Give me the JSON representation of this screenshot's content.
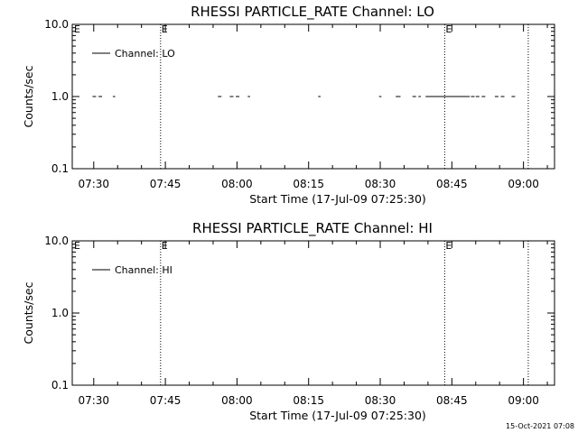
{
  "chart_data": [
    {
      "type": "line",
      "title": "RHESSI PARTICLE_RATE Channel: LO",
      "xlabel": "Start Time (17-Jul-09 07:25:30)",
      "ylabel": "Counts/sec",
      "y_scale": "log",
      "ylim": [
        0.1,
        10.0
      ],
      "y_ticks": [
        "0.1",
        "1.0",
        "10.0"
      ],
      "x_ticks": [
        "07:30",
        "07:45",
        "08:00",
        "08:15",
        "08:30",
        "08:45",
        "09:00"
      ],
      "xlim": [
        "07:25:30",
        "09:06:30"
      ],
      "grid": false,
      "legend": {
        "position": "top-left",
        "entries": [
          "Channel: LO"
        ]
      },
      "vertical_markers": [
        {
          "time": "07:44:00",
          "label": "E"
        },
        {
          "time": "08:43:30",
          "label": "E"
        },
        {
          "time": "09:01:00",
          "label": ""
        }
      ],
      "series": [
        {
          "name": "Channel: LO",
          "y": 1.0,
          "segments": [
            [
              "07:29:45",
              "07:30:30"
            ],
            [
              "07:31:00",
              "07:31:45"
            ],
            [
              "07:34:00",
              "07:34:30"
            ],
            [
              "07:56:00",
              "07:56:45"
            ],
            [
              "07:58:30",
              "07:59:15"
            ],
            [
              "07:59:45",
              "08:00:30"
            ],
            [
              "08:02:15",
              "08:02:45"
            ],
            [
              "08:17:00",
              "08:17:30"
            ],
            [
              "08:29:45",
              "08:30:15"
            ],
            [
              "08:33:15",
              "08:34:15"
            ],
            [
              "08:36:45",
              "08:37:30"
            ],
            [
              "08:38:00",
              "08:38:30"
            ],
            [
              "08:39:30",
              "08:48:45"
            ],
            [
              "08:49:00",
              "08:49:45"
            ],
            [
              "08:50:00",
              "08:50:45"
            ],
            [
              "08:51:15",
              "08:52:00"
            ],
            [
              "08:54:00",
              "08:54:45"
            ],
            [
              "08:55:15",
              "08:56:00"
            ],
            [
              "08:57:30",
              "08:58:15"
            ]
          ]
        }
      ]
    },
    {
      "type": "line",
      "title": "RHESSI PARTICLE_RATE Channel: HI",
      "xlabel": "Start Time (17-Jul-09 07:25:30)",
      "ylabel": "Counts/sec",
      "y_scale": "log",
      "ylim": [
        0.1,
        10.0
      ],
      "y_ticks": [
        "0.1",
        "1.0",
        "10.0"
      ],
      "x_ticks": [
        "07:30",
        "07:45",
        "08:00",
        "08:15",
        "08:30",
        "08:45",
        "09:00"
      ],
      "xlim": [
        "07:25:30",
        "09:06:30"
      ],
      "grid": false,
      "legend": {
        "position": "top-left",
        "entries": [
          "Channel: HI"
        ]
      },
      "vertical_markers": [
        {
          "time": "07:44:00",
          "label": "E"
        },
        {
          "time": "08:43:30",
          "label": "E"
        },
        {
          "time": "09:01:00",
          "label": ""
        }
      ],
      "series": [
        {
          "name": "Channel: HI",
          "y": 1.0,
          "segments": []
        }
      ]
    }
  ],
  "footer": {
    "timestamp": "15-Oct-2021 07:08"
  }
}
